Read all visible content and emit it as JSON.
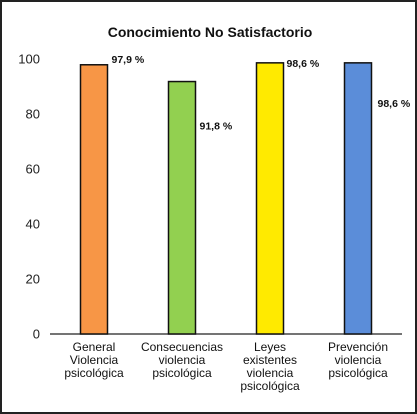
{
  "chart_data": {
    "type": "bar",
    "title": "Conocimiento No Satisfactorio",
    "categories": [
      [
        "General",
        "Violencia",
        "psicológica"
      ],
      [
        "Consecuencias",
        "violencia",
        "psicológica"
      ],
      [
        "Leyes",
        "existentes",
        "violencia",
        "psicológica"
      ],
      [
        "Prevención",
        "violencia",
        "psicológica"
      ]
    ],
    "values": [
      97.9,
      91.8,
      98.6,
      98.6
    ],
    "data_labels": [
      "97,9 %",
      "91,8 %",
      "98,6 %",
      "98,6 %"
    ],
    "colors": [
      "#f79646",
      "#92d050",
      "#ffea00",
      "#5b8dd9"
    ],
    "ylim": [
      0,
      100
    ],
    "yticks": [
      0,
      20,
      40,
      60,
      80,
      100
    ],
    "grid": false,
    "legend": "none"
  }
}
